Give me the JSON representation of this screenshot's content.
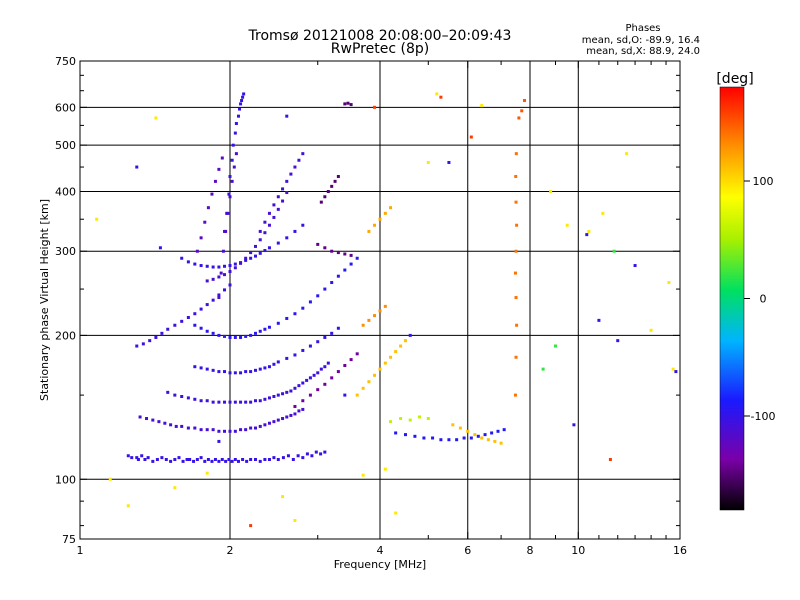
{
  "chart_data": {
    "type": "scatter",
    "title": "Tromsø 20121008 20:08:00–20:09:43",
    "subtitle": "RwPretec (8p)",
    "xlabel": "Frequency [MHz]",
    "ylabel": "Stationary phase Virtual Height [km]",
    "x_scale": "log",
    "y_scale": "log",
    "xlim": [
      1,
      16
    ],
    "ylim": [
      75,
      750
    ],
    "xticks": [
      1,
      2,
      4,
      6,
      8,
      10,
      16
    ],
    "yticks": [
      75,
      100,
      200,
      300,
      400,
      500,
      600,
      750
    ],
    "x_gridlines": [
      2,
      4,
      6,
      8,
      10
    ],
    "y_gridlines": [
      100,
      200,
      300,
      400,
      500,
      600
    ],
    "grid": true,
    "stats": {
      "heading": "Phases",
      "line1": "mean, sd,O: -89.9, 16.4",
      "line2": "mean, sd,X:  88.9, 24.0"
    },
    "colorbar": {
      "label": "[deg]",
      "min": -180,
      "max": 180,
      "ticks": [
        -100,
        0,
        100
      ]
    },
    "series": [
      {
        "x": [
          1.25,
          1.27,
          1.3,
          1.31,
          1.33,
          1.35,
          1.37,
          1.4,
          1.43,
          1.46,
          1.49,
          1.52,
          1.55,
          1.58,
          1.61,
          1.64,
          1.66,
          1.69,
          1.72,
          1.75,
          1.78,
          1.81,
          1.84,
          1.87,
          1.9,
          1.93,
          1.96,
          1.99,
          2.02,
          2.05,
          2.08,
          2.12,
          2.16,
          2.2,
          2.25,
          2.3,
          2.35,
          2.4,
          2.45,
          2.5,
          2.56,
          2.62,
          2.68,
          2.74,
          2.8,
          2.86,
          2.92,
          2.98,
          3.04,
          3.1
        ],
        "y": [
          112,
          111,
          111,
          110,
          112,
          110,
          111,
          109,
          110,
          111,
          110,
          109,
          110,
          111,
          109,
          110,
          110,
          109,
          110,
          111,
          109,
          110,
          109,
          110,
          109,
          110,
          109,
          110,
          109,
          110,
          109,
          110,
          109,
          110,
          110,
          109,
          110,
          110,
          111,
          110,
          111,
          112,
          110,
          112,
          111,
          113,
          112,
          114,
          113,
          114
        ],
        "phase": -100
      },
      {
        "x": [
          1.32,
          1.36,
          1.4,
          1.44,
          1.48,
          1.52,
          1.56,
          1.6,
          1.65,
          1.7,
          1.75,
          1.8,
          1.85,
          1.9,
          1.95,
          2.0,
          2.05,
          2.1,
          2.15,
          2.2,
          2.25,
          2.3,
          2.35,
          2.4,
          2.45,
          2.5,
          2.55,
          2.6,
          2.65,
          2.7,
          2.75,
          2.8
        ],
        "y": [
          135,
          134,
          133,
          132,
          131,
          130,
          129,
          129,
          128,
          128,
          127,
          127,
          127,
          126,
          126,
          126,
          126,
          127,
          127,
          128,
          128,
          129,
          130,
          131,
          132,
          133,
          134,
          135,
          136,
          137,
          139,
          140
        ],
        "phase": -110
      },
      {
        "x": [
          1.5,
          1.55,
          1.6,
          1.65,
          1.7,
          1.75,
          1.8,
          1.85,
          1.9,
          1.95,
          2.0,
          2.05,
          2.1,
          2.15,
          2.2,
          2.25,
          2.3,
          2.35,
          2.4,
          2.45,
          2.5,
          2.55,
          2.6,
          2.65,
          2.7,
          2.75,
          2.8,
          2.85,
          2.9,
          2.95,
          3.0,
          3.05,
          3.1,
          3.15
        ],
        "y": [
          152,
          150,
          149,
          148,
          147,
          146,
          146,
          145,
          145,
          145,
          145,
          145,
          145,
          145,
          145,
          146,
          146,
          147,
          148,
          149,
          150,
          151,
          152,
          153,
          155,
          157,
          159,
          161,
          163,
          165,
          167,
          170,
          172,
          175
        ],
        "phase": -105
      },
      {
        "x": [
          1.7,
          1.75,
          1.8,
          1.85,
          1.9,
          1.95,
          2.0,
          2.05,
          2.1,
          2.15,
          2.2,
          2.25,
          2.3,
          2.35,
          2.4,
          2.45,
          2.5,
          2.6,
          2.7,
          2.8,
          2.9,
          3.0,
          3.1,
          3.2,
          3.3
        ],
        "y": [
          172,
          171,
          170,
          169,
          168,
          168,
          167,
          167,
          167,
          168,
          168,
          169,
          170,
          171,
          172,
          174,
          176,
          179,
          182,
          186,
          190,
          194,
          198,
          202,
          207
        ],
        "phase": -100
      },
      {
        "x": [
          1.7,
          1.75,
          1.8,
          1.85,
          1.9,
          1.95,
          2.0,
          2.05,
          2.1,
          2.15,
          2.2,
          2.25,
          2.3,
          2.35,
          2.4,
          2.5,
          2.6,
          2.7,
          2.8,
          2.9,
          3.0,
          3.1,
          3.2,
          3.3,
          3.4,
          3.5,
          3.6
        ],
        "y": [
          210,
          207,
          204,
          202,
          200,
          199,
          198,
          198,
          198,
          199,
          200,
          202,
          204,
          206,
          208,
          212,
          217,
          222,
          228,
          235,
          242,
          250,
          258,
          266,
          274,
          282,
          290
        ],
        "phase": -95
      },
      {
        "x": [
          1.3,
          1.34,
          1.38,
          1.42,
          1.46,
          1.5,
          1.55,
          1.6,
          1.65,
          1.7,
          1.75,
          1.8,
          1.85,
          1.9,
          1.95,
          2.0
        ],
        "y": [
          190,
          192,
          195,
          198,
          202,
          206,
          210,
          214,
          218,
          222,
          227,
          232,
          237,
          243,
          249,
          255
        ],
        "phase": -105
      },
      {
        "x": [
          1.6,
          1.65,
          1.7,
          1.75,
          1.8,
          1.85,
          1.9,
          1.95,
          2.0,
          2.05,
          2.1,
          2.15,
          2.2,
          2.25,
          2.3,
          2.35,
          2.4,
          2.5,
          2.6,
          2.7,
          2.8
        ],
        "y": [
          290,
          285,
          282,
          280,
          279,
          278,
          278,
          279,
          280,
          282,
          284,
          287,
          290,
          293,
          297,
          301,
          305,
          312,
          320,
          330,
          340
        ],
        "phase": -100
      },
      {
        "x": [
          1.8,
          1.85,
          1.9,
          1.95,
          2.0,
          2.05,
          2.1,
          2.15,
          2.2,
          2.25,
          2.3,
          2.35,
          2.4,
          2.45,
          2.5,
          2.55,
          2.6
        ],
        "y": [
          260,
          262,
          265,
          268,
          272,
          277,
          283,
          290,
          298,
          307,
          317,
          328,
          340,
          353,
          367,
          382,
          398
        ],
        "phase": -110
      },
      {
        "x": [
          1.95,
          1.97,
          1.99,
          2.0,
          2.02,
          2.03,
          2.05,
          2.06,
          2.08,
          2.09,
          2.1,
          2.11,
          2.12,
          2.13
        ],
        "y": [
          330,
          360,
          395,
          430,
          465,
          500,
          530,
          555,
          575,
          595,
          610,
          620,
          630,
          640
        ],
        "phase": -100
      },
      {
        "x": [
          1.9,
          1.92,
          1.94,
          1.96,
          1.98,
          2.0,
          2.02,
          2.04,
          2.06
        ],
        "y": [
          240,
          270,
          300,
          330,
          360,
          390,
          420,
          450,
          480
        ],
        "phase": -115
      },
      {
        "x": [
          1.72,
          1.75,
          1.78,
          1.81,
          1.84,
          1.87,
          1.9,
          1.93
        ],
        "y": [
          300,
          320,
          345,
          370,
          395,
          420,
          445,
          470
        ],
        "phase": -120
      },
      {
        "x": [
          2.3,
          2.35,
          2.4,
          2.45,
          2.5,
          2.55,
          2.6,
          2.65,
          2.7,
          2.75,
          2.8
        ],
        "y": [
          330,
          345,
          360,
          375,
          390,
          405,
          420,
          435,
          450,
          465,
          480
        ],
        "phase": -110
      },
      {
        "x": [
          2.7,
          2.8,
          2.9,
          3.0,
          3.1,
          3.2,
          3.3,
          3.4,
          3.5,
          3.6
        ],
        "y": [
          142,
          146,
          150,
          154,
          158,
          163,
          168,
          173,
          178,
          183
        ],
        "phase": -140
      },
      {
        "x": [
          3.05,
          3.1,
          3.15,
          3.2,
          3.25,
          3.3
        ],
        "y": [
          380,
          390,
          400,
          410,
          420,
          430
        ],
        "phase": -150
      },
      {
        "x": [
          3.0,
          3.1,
          3.2,
          3.3,
          3.4,
          3.5
        ],
        "y": [
          310,
          305,
          300,
          298,
          296,
          294
        ],
        "phase": -145
      },
      {
        "x": [
          3.4,
          3.45,
          3.5
        ],
        "y": [
          610,
          612,
          608
        ],
        "phase": -150
      },
      {
        "x": [
          3.6,
          3.7,
          3.8,
          3.9,
          4.0,
          4.1,
          4.2,
          4.3,
          4.4,
          4.5
        ],
        "y": [
          150,
          155,
          160,
          165,
          170,
          175,
          180,
          185,
          190,
          195
        ],
        "phase": 110
      },
      {
        "x": [
          3.8,
          3.9,
          4.0,
          4.1,
          4.2
        ],
        "y": [
          330,
          340,
          350,
          360,
          370
        ],
        "phase": 120
      },
      {
        "x": [
          3.7,
          3.8,
          3.9,
          4.0,
          4.1
        ],
        "y": [
          210,
          215,
          220,
          225,
          230
        ],
        "phase": 130
      },
      {
        "x": [
          4.3,
          4.5,
          4.7,
          4.9,
          5.1,
          5.3,
          5.5,
          5.7,
          5.9,
          6.1,
          6.3,
          6.5,
          6.7,
          6.9,
          7.1
        ],
        "y": [
          125,
          124,
          123,
          122,
          122,
          121,
          121,
          121,
          122,
          122,
          123,
          124,
          125,
          126,
          127
        ],
        "phase": -90
      },
      {
        "x": [
          5.6,
          5.8,
          6.0,
          6.2,
          6.4,
          6.6,
          6.8,
          7.0
        ],
        "y": [
          130,
          128,
          126,
          124,
          122,
          121,
          120,
          119
        ],
        "phase": 110
      },
      {
        "x": [
          4.2,
          4.4,
          4.6,
          4.8,
          5.0
        ],
        "y": [
          132,
          134,
          133,
          135,
          134
        ],
        "phase": 60
      },
      {
        "x": [
          7.48,
          7.5,
          7.52,
          7.5,
          7.48,
          7.5,
          7.52,
          7.5,
          7.49,
          7.51
        ],
        "y": [
          150,
          180,
          210,
          240,
          270,
          300,
          340,
          380,
          430,
          480
        ],
        "phase": 140
      },
      {
        "x": [
          7.6,
          7.7,
          7.8
        ],
        "y": [
          570,
          590,
          620
        ],
        "phase": 150
      },
      {
        "x": [
          1.08,
          1.15,
          1.25,
          1.42,
          1.55,
          1.8,
          2.55,
          2.7,
          3.7,
          4.1,
          4.3,
          5.0,
          5.2,
          6.4,
          8.8,
          9.5,
          10.5,
          11.2,
          12.5,
          14.0,
          15.2,
          15.5
        ],
        "y": [
          350,
          100,
          88,
          570,
          96,
          103,
          92,
          82,
          102,
          105,
          85,
          460,
          640,
          605,
          400,
          340,
          330,
          360,
          480,
          205,
          258,
          170
        ],
        "phase": 95
      },
      {
        "x": [
          1.3,
          1.45,
          1.9,
          2.6,
          3.4,
          4.6,
          5.5,
          9.8,
          10.4,
          11.0,
          12.0,
          13.0,
          15.7
        ],
        "y": [
          450,
          305,
          120,
          575,
          150,
          200,
          460,
          130,
          325,
          215,
          195,
          280,
          168
        ],
        "phase": -100
      },
      {
        "x": [
          8.5,
          9.0,
          11.8
        ],
        "y": [
          170,
          190,
          300
        ],
        "phase": 20
      },
      {
        "x": [
          2.2,
          3.9,
          5.3,
          6.1,
          11.6
        ],
        "y": [
          80,
          600,
          630,
          520,
          110
        ],
        "phase": 160
      }
    ]
  }
}
